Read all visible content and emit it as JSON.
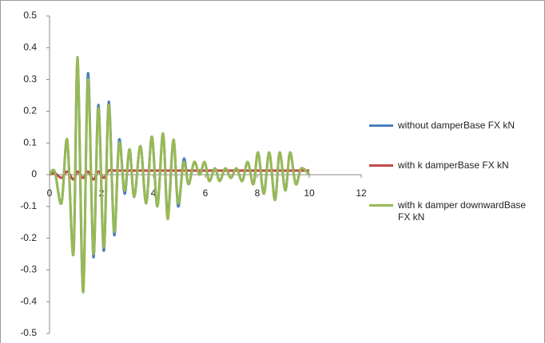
{
  "chart_data": {
    "type": "line",
    "x": [
      0,
      0.2,
      0.46,
      0.68,
      0.92,
      1.08,
      1.29,
      1.48,
      1.69,
      1.88,
      2.09,
      2.28,
      2.49,
      2.68,
      2.89,
      3.08,
      3.26,
      3.5,
      3.72,
      3.94,
      4.15,
      4.37,
      4.55,
      4.77,
      4.95,
      5.17,
      5.35,
      5.57,
      5.78,
      5.97,
      6.15,
      6.37,
      6.55,
      6.77,
      6.98,
      7.2,
      7.42,
      7.63,
      7.85,
      8.03,
      8.25,
      8.46,
      8.68,
      8.86,
      9.08,
      9.26,
      9.48,
      9.69,
      10
    ],
    "series": [
      {
        "name": "without damperBase FX kN",
        "color": "#4a7ebf",
        "values": [
          0,
          0.01,
          -0.09,
          0.11,
          -0.25,
          0.36,
          -0.37,
          0.32,
          -0.26,
          0.22,
          -0.24,
          0.23,
          -0.19,
          0.11,
          -0.06,
          0.08,
          -0.07,
          0.09,
          -0.09,
          0.12,
          -0.1,
          0.13,
          -0.13,
          0.11,
          -0.1,
          0.05,
          -0.03,
          0.04,
          0,
          0.04,
          -0.02,
          0.02,
          -0.02,
          0.02,
          -0.01,
          0.02,
          -0.02,
          0.04,
          -0.03,
          0.07,
          -0.06,
          0.07,
          -0.08,
          0.07,
          -0.05,
          0.07,
          -0.03,
          0.02,
          0
        ]
      },
      {
        "name": "with k damperBase FX kN",
        "color": "#be4b48",
        "values": [
          0,
          0.005,
          -0.01,
          0.01,
          -0.015,
          0.01,
          -0.01,
          0.01,
          -0.015,
          0.01,
          -0.01,
          0.013,
          0.013,
          0.013,
          0.013,
          0.013,
          0.013,
          0.013,
          0.013,
          0.013,
          0.013,
          0.013,
          0.013,
          0.013,
          0.013,
          0.013,
          0.013,
          0.013,
          0.013,
          0.013,
          0.013,
          0.013,
          0.013,
          0.013,
          0.013,
          0.013,
          0.013,
          0.013,
          0.013,
          0.013,
          0.013,
          0.013,
          0.013,
          0.013,
          0.013,
          0.013,
          0.013,
          0.013,
          0.013
        ]
      },
      {
        "name": "with k damper downwardBase FX kN",
        "color": "#98b954",
        "values": [
          0,
          0.01,
          -0.09,
          0.11,
          -0.25,
          0.37,
          -0.37,
          0.3,
          -0.25,
          0.21,
          -0.23,
          0.22,
          -0.18,
          0.1,
          -0.05,
          0.08,
          -0.07,
          0.09,
          -0.09,
          0.12,
          -0.1,
          0.13,
          -0.14,
          0.11,
          -0.09,
          0.04,
          -0.03,
          0.04,
          0,
          0.04,
          -0.02,
          0.02,
          -0.02,
          0.02,
          -0.01,
          0.02,
          -0.02,
          0.04,
          -0.03,
          0.07,
          -0.06,
          0.07,
          -0.08,
          0.07,
          -0.05,
          0.07,
          -0.03,
          0.02,
          0
        ]
      }
    ],
    "xlim": [
      0,
      12
    ],
    "xticks": [
      0,
      2,
      4,
      6,
      8,
      10,
      12
    ],
    "ylim": [
      -0.5,
      0.5
    ],
    "yticks": [
      0.5,
      0.4,
      0.3,
      0.2,
      0.1,
      0,
      -0.1,
      -0.2,
      -0.3,
      -0.4,
      -0.5
    ],
    "grid": false,
    "legend": "right"
  }
}
